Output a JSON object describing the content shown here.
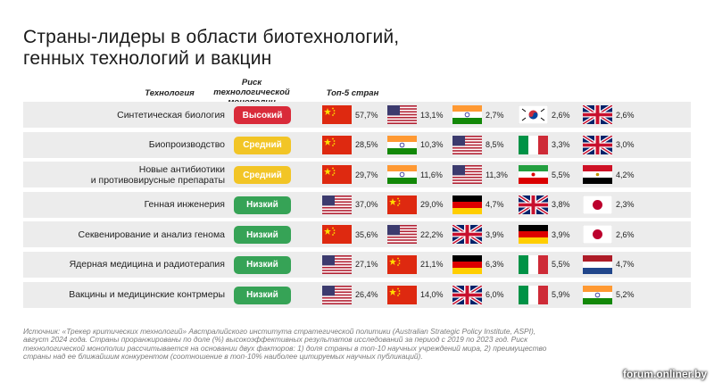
{
  "title": {
    "line1": "Страны-лидеры в области биотехнологий,",
    "line2": "генных технологий и вакцин"
  },
  "headers": {
    "technology": "Технология",
    "risk": "Риск технологической монополии",
    "top5": "Топ-5 стран"
  },
  "colors": {
    "high": "#d92b3a",
    "medium": "#f2c526",
    "low": "#36a356",
    "row_bg": "#ececec"
  },
  "rows": [
    {
      "technology": "Синтетическая биология",
      "risk": "Высокий",
      "level": "high",
      "countries": [
        {
          "flag": "cn",
          "pct": "57,7%"
        },
        {
          "flag": "us",
          "pct": "13,1%"
        },
        {
          "flag": "in",
          "pct": "2,7%"
        },
        {
          "flag": "kr",
          "pct": "2,6%"
        },
        {
          "flag": "gb",
          "pct": "2,6%"
        }
      ]
    },
    {
      "technology": "Биопроизводство",
      "risk": "Средний",
      "level": "medium",
      "countries": [
        {
          "flag": "cn",
          "pct": "28,5%"
        },
        {
          "flag": "in",
          "pct": "10,3%"
        },
        {
          "flag": "us",
          "pct": "8,5%"
        },
        {
          "flag": "it",
          "pct": "3,3%"
        },
        {
          "flag": "gb",
          "pct": "3,0%"
        }
      ]
    },
    {
      "technology": "Новые антибиотики\nи противовирусные препараты",
      "risk": "Средний",
      "level": "medium",
      "countries": [
        {
          "flag": "cn",
          "pct": "29,7%"
        },
        {
          "flag": "in",
          "pct": "11,6%"
        },
        {
          "flag": "us",
          "pct": "11,3%"
        },
        {
          "flag": "ir",
          "pct": "5,5%"
        },
        {
          "flag": "eg",
          "pct": "4,2%"
        }
      ]
    },
    {
      "technology": "Генная инженерия",
      "risk": "Низкий",
      "level": "low",
      "countries": [
        {
          "flag": "us",
          "pct": "37,0%"
        },
        {
          "flag": "cn",
          "pct": "29,0%"
        },
        {
          "flag": "de",
          "pct": "4,7%"
        },
        {
          "flag": "gb",
          "pct": "3,8%"
        },
        {
          "flag": "jp",
          "pct": "2,3%"
        }
      ]
    },
    {
      "technology": "Секвенирование и анализ генома",
      "risk": "Низкий",
      "level": "low",
      "countries": [
        {
          "flag": "cn",
          "pct": "35,6%"
        },
        {
          "flag": "us",
          "pct": "22,2%"
        },
        {
          "flag": "gb",
          "pct": "3,9%"
        },
        {
          "flag": "de",
          "pct": "3,9%"
        },
        {
          "flag": "jp",
          "pct": "2,6%"
        }
      ]
    },
    {
      "technology": "Ядерная медицина и радиотерапия",
      "risk": "Низкий",
      "level": "low",
      "countries": [
        {
          "flag": "us",
          "pct": "27,1%"
        },
        {
          "flag": "cn",
          "pct": "21,1%"
        },
        {
          "flag": "de",
          "pct": "6,3%"
        },
        {
          "flag": "it",
          "pct": "5,5%"
        },
        {
          "flag": "nl",
          "pct": "4,7%"
        }
      ]
    },
    {
      "technology": "Вакцины и медицинские контрмеры",
      "risk": "Низкий",
      "level": "low",
      "countries": [
        {
          "flag": "us",
          "pct": "26,4%"
        },
        {
          "flag": "cn",
          "pct": "14,0%"
        },
        {
          "flag": "gb",
          "pct": "6,0%"
        },
        {
          "flag": "it",
          "pct": "5,9%"
        },
        {
          "flag": "in",
          "pct": "5,2%"
        }
      ]
    }
  ],
  "source": "Источник: «Трекер критических технологий» Австралийского института стратегической политики (Australian Strategic Policy Institute, ASPI), август 2024 года. Страны проранжированы по доле (%) высокоэффективных результатов исследований за период с 2019 по 2023 год. Риск технологической монополии рассчитывается на основании двух факторов: 1) доля страны в топ-10 научных учреждений мира, 2) преимущество страны над ее ближайшим конкурентом (соотношение в топ-10% наиболее цитируемых научных публикаций).",
  "watermark": "forum.onliner.by"
}
